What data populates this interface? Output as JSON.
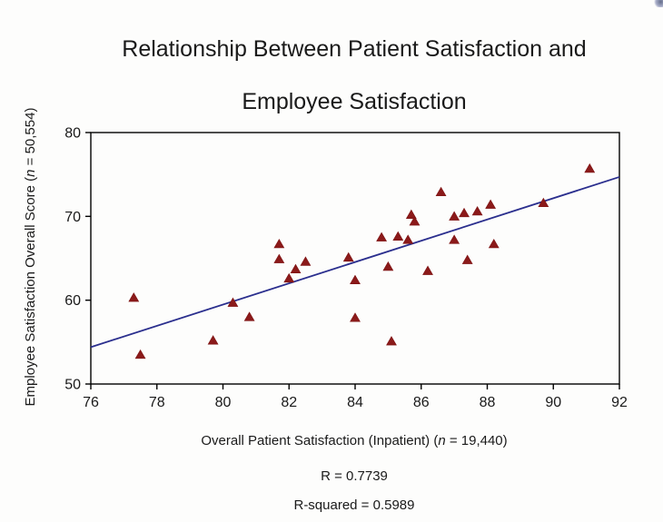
{
  "title": {
    "line1": "Relationship Between Patient Satisfaction and",
    "line2": "Employee Satisfaction"
  },
  "chart_data": {
    "type": "scatter",
    "title": "Relationship Between Patient Satisfaction and Employee Satisfaction",
    "xlabel": {
      "prefix": "Overall Patient Satisfaction (Inpatient) (",
      "italic": "n",
      "suffix": " = 19,440)"
    },
    "ylabel": {
      "prefix": "Employee Satisfaction Overall Score (",
      "italic": "n",
      "suffix": " = 50,554)"
    },
    "xlim": [
      76,
      92
    ],
    "ylim": [
      50,
      80
    ],
    "x_ticks": [
      76,
      78,
      80,
      82,
      84,
      86,
      88,
      90,
      92
    ],
    "y_ticks": [
      50,
      60,
      70,
      80
    ],
    "grid": false,
    "legend": false,
    "marker": {
      "shape": "triangle-up",
      "color": "#8B1A1A",
      "edge_color": "#7c1212"
    },
    "line_color": "#2B2F8E",
    "points": [
      [
        77.3,
        60.3
      ],
      [
        77.5,
        53.5
      ],
      [
        79.7,
        55.2
      ],
      [
        80.3,
        59.7
      ],
      [
        80.8,
        58.0
      ],
      [
        81.7,
        66.7
      ],
      [
        81.7,
        64.9
      ],
      [
        82.0,
        62.6
      ],
      [
        82.2,
        63.7
      ],
      [
        82.5,
        64.6
      ],
      [
        83.8,
        65.1
      ],
      [
        84.0,
        62.4
      ],
      [
        84.0,
        57.9
      ],
      [
        85.1,
        55.1
      ],
      [
        85.0,
        64.0
      ],
      [
        84.8,
        67.5
      ],
      [
        85.3,
        67.6
      ],
      [
        85.6,
        67.2
      ],
      [
        85.7,
        70.2
      ],
      [
        85.8,
        69.4
      ],
      [
        86.2,
        63.5
      ],
      [
        86.6,
        72.9
      ],
      [
        87.0,
        70.0
      ],
      [
        87.3,
        70.4
      ],
      [
        87.7,
        70.6
      ],
      [
        88.1,
        71.4
      ],
      [
        87.0,
        67.2
      ],
      [
        88.2,
        66.7
      ],
      [
        87.4,
        64.8
      ],
      [
        89.7,
        71.6
      ],
      [
        91.1,
        75.7
      ]
    ],
    "trendline": {
      "x1": 76,
      "y1": 54.4,
      "x2": 92,
      "y2": 74.7
    },
    "stats": {
      "r": "R = 0.7739",
      "r_squared": "R-squared = 0.5989"
    }
  }
}
